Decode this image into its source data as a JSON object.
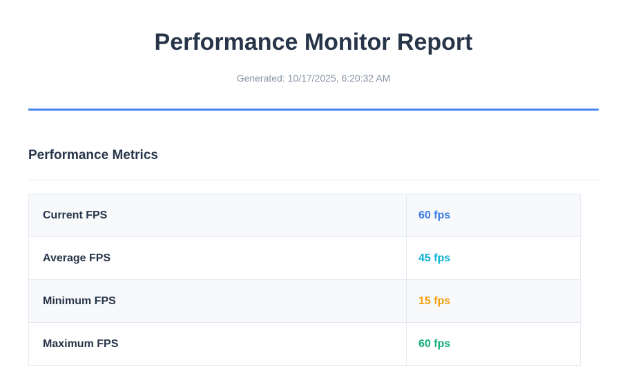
{
  "report": {
    "title": "Performance Monitor Report",
    "generated": "Generated: 10/17/2025, 6:20:32 AM"
  },
  "section": {
    "heading": "Performance Metrics"
  },
  "metrics": [
    {
      "label": "Current FPS",
      "value": "60 fps",
      "color": "#3b7ce8"
    },
    {
      "label": "Average FPS",
      "value": "45 fps",
      "color": "#0bb4d4"
    },
    {
      "label": "Minimum FPS",
      "value": "15 fps",
      "color": "#f59e0b"
    },
    {
      "label": "Maximum FPS",
      "value": "60 fps",
      "color": "#10b07a"
    }
  ],
  "colors": {
    "accent_line": "#4a84ee",
    "heading_text": "#273549",
    "muted_text": "#8793a6",
    "row_alt_bg": "#f8f9fb",
    "table_border": "#e4e8f0"
  }
}
